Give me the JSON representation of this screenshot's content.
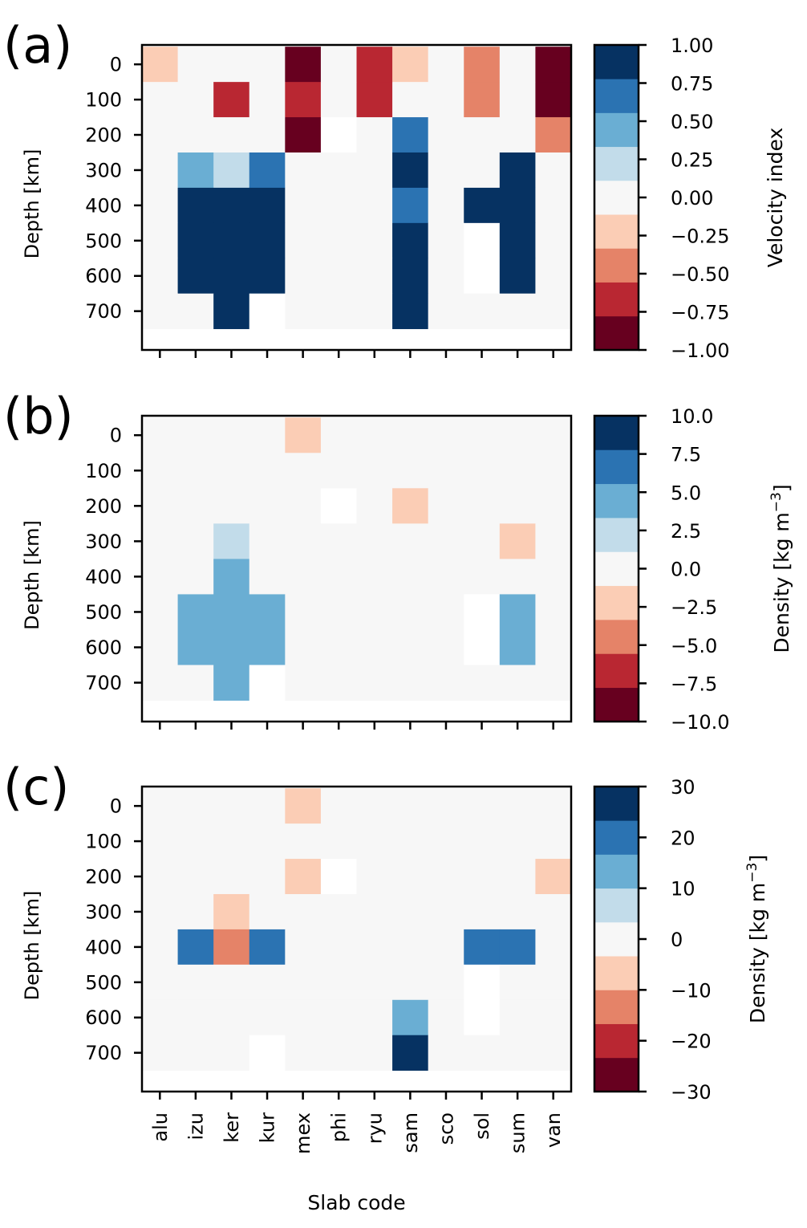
{
  "figure": {
    "colormap_bands": [
      "#67001f",
      "#b92732",
      "#e58368",
      "#fbcdb5",
      "#f7f7f7",
      "#c2dcea",
      "#6aaed3",
      "#2b73b2",
      "#063262"
    ],
    "nan_color": "#ffffff"
  },
  "chart_data": [
    {
      "type": "heatmap",
      "panel_label": "(a)",
      "xlabel": "",
      "ylabel": "Depth  [km]",
      "x_categories": [
        "alu",
        "izu",
        "ker",
        "kur",
        "mex",
        "phi",
        "ryu",
        "sam",
        "sco",
        "sol",
        "sum",
        "van"
      ],
      "show_x_ticklabels": false,
      "y_categories": [
        0,
        100,
        200,
        300,
        400,
        500,
        600,
        700
      ],
      "ylim": [
        810,
        -55
      ],
      "y_ticklabels": [
        "0",
        "100",
        "200",
        "300",
        "400",
        "500",
        "600",
        "700"
      ],
      "colorbar": {
        "label": "Velocity index",
        "vmin": -1.0,
        "vmax": 1.0,
        "n_bands": 9,
        "ticks": [
          1.0,
          0.75,
          0.5,
          0.25,
          0.0,
          -0.25,
          -0.5,
          -0.75,
          -1.0
        ],
        "tick_labels": [
          "1.00",
          "0.75",
          "0.50",
          "0.25",
          "0.00",
          "−0.25",
          "−0.50",
          "−0.75",
          "−1.00"
        ]
      },
      "values": [
        [
          -0.25,
          0,
          0,
          0,
          -1,
          0,
          -0.75,
          -0.25,
          0,
          -0.5,
          0,
          -1
        ],
        [
          0,
          0,
          -0.75,
          0,
          -0.75,
          0,
          -0.75,
          0,
          0,
          -0.5,
          0,
          -1
        ],
        [
          0,
          0,
          0,
          0,
          -1,
          null,
          0,
          0.75,
          0,
          0,
          0,
          -0.5
        ],
        [
          0,
          0.5,
          0.25,
          0.75,
          0,
          0,
          0,
          1,
          0,
          0,
          1,
          0
        ],
        [
          0,
          1,
          1,
          1,
          0,
          0,
          0,
          0.75,
          0,
          1,
          1,
          0
        ],
        [
          0,
          1,
          1,
          1,
          0,
          0,
          0,
          1,
          0,
          null,
          1,
          0
        ],
        [
          0,
          1,
          1,
          1,
          0,
          0,
          0,
          1,
          0,
          null,
          1,
          0
        ],
        [
          0,
          0,
          1,
          null,
          0,
          0,
          0,
          1,
          0,
          0,
          0,
          0
        ]
      ]
    },
    {
      "type": "heatmap",
      "panel_label": "(b)",
      "xlabel": "",
      "ylabel": "Depth  [km]",
      "x_categories": [
        "alu",
        "izu",
        "ker",
        "kur",
        "mex",
        "phi",
        "ryu",
        "sam",
        "sco",
        "sol",
        "sum",
        "van"
      ],
      "show_x_ticklabels": false,
      "y_categories": [
        0,
        100,
        200,
        300,
        400,
        500,
        600,
        700
      ],
      "ylim": [
        810,
        -55
      ],
      "y_ticklabels": [
        "0",
        "100",
        "200",
        "300",
        "400",
        "500",
        "600",
        "700"
      ],
      "colorbar": {
        "label": "Density [kg m⁻³]",
        "label_main": "Density [kg m",
        "label_sup": "−3",
        "label_end": "]",
        "vmin": -10.0,
        "vmax": 10.0,
        "n_bands": 9,
        "ticks": [
          10.0,
          7.5,
          5.0,
          2.5,
          0.0,
          -2.5,
          -5.0,
          -7.5,
          -10.0
        ],
        "tick_labels": [
          "10.0",
          "7.5",
          "5.0",
          "2.5",
          "0.0",
          "−2.5",
          "−5.0",
          "−7.5",
          "−10.0"
        ]
      },
      "values": [
        [
          0,
          0,
          0,
          0,
          -2.5,
          0,
          0,
          0,
          0,
          0,
          0,
          0
        ],
        [
          0,
          0,
          0,
          0,
          0,
          0,
          0,
          0,
          0,
          0,
          0,
          0
        ],
        [
          0,
          0,
          0,
          0,
          0,
          null,
          0,
          -2.5,
          0,
          0,
          0,
          0
        ],
        [
          0,
          0,
          2.5,
          0,
          0,
          0,
          0,
          0,
          0,
          0,
          -2.5,
          0
        ],
        [
          0,
          0,
          5,
          0,
          0,
          0,
          0,
          0,
          0,
          0,
          0,
          0
        ],
        [
          0,
          5,
          5,
          5,
          0,
          0,
          0,
          0,
          0,
          null,
          5,
          0
        ],
        [
          0,
          5,
          5,
          5,
          0,
          0,
          0,
          0,
          0,
          null,
          5,
          0
        ],
        [
          0,
          0,
          5,
          null,
          0,
          0,
          0,
          0,
          0,
          0,
          0,
          0
        ]
      ]
    },
    {
      "type": "heatmap",
      "panel_label": "(c)",
      "xlabel": "Slab code",
      "ylabel": "Depth  [km]",
      "x_categories": [
        "alu",
        "izu",
        "ker",
        "kur",
        "mex",
        "phi",
        "ryu",
        "sam",
        "sco",
        "sol",
        "sum",
        "van"
      ],
      "show_x_ticklabels": true,
      "y_categories": [
        0,
        100,
        200,
        300,
        400,
        500,
        600,
        700
      ],
      "ylim": [
        810,
        -55
      ],
      "y_ticklabels": [
        "0",
        "100",
        "200",
        "300",
        "400",
        "500",
        "600",
        "700"
      ],
      "colorbar": {
        "label": "Density [kg m⁻³]",
        "label_main": "Density [kg m",
        "label_sup": "−3",
        "label_end": "]",
        "vmin": -30,
        "vmax": 30,
        "n_bands": 9,
        "ticks": [
          30,
          20,
          10,
          0,
          -10,
          -20,
          -30
        ],
        "tick_labels": [
          "30",
          "20",
          "10",
          "0",
          "−10",
          "−20",
          "−30"
        ]
      },
      "values": [
        [
          0,
          0,
          0,
          0,
          -7,
          0,
          0,
          0,
          0,
          0,
          0,
          0
        ],
        [
          0,
          0,
          0,
          0,
          0,
          0,
          0,
          0,
          0,
          0,
          0,
          0
        ],
        [
          0,
          0,
          0,
          0,
          -7,
          null,
          0,
          0,
          0,
          0,
          0,
          -7
        ],
        [
          0,
          0,
          -7,
          0,
          0,
          0,
          0,
          0,
          0,
          0,
          0,
          0
        ],
        [
          0,
          20,
          -15,
          20,
          0,
          0,
          0,
          0,
          0,
          20,
          20,
          0
        ],
        [
          0,
          0,
          0,
          0,
          0,
          0,
          0,
          0,
          0,
          null,
          0,
          0
        ],
        [
          0,
          0,
          0,
          0,
          0,
          0,
          0,
          13,
          0,
          null,
          0,
          0
        ],
        [
          0,
          0,
          0,
          null,
          0,
          0,
          0,
          30,
          0,
          0,
          0,
          0
        ]
      ]
    }
  ]
}
